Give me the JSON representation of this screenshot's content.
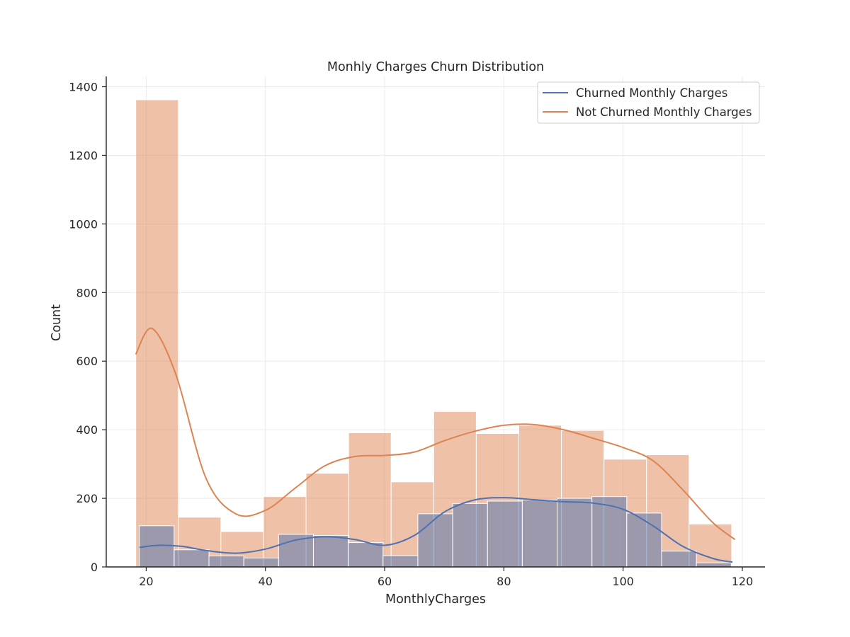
{
  "chart_data": {
    "type": "bar",
    "title": "Monhly Charges Churn Distribution",
    "xlabel": "MonthlyCharges",
    "ylabel": "Count",
    "xlim": [
      13.3,
      123.8
    ],
    "ylim": [
      0,
      1430
    ],
    "xticks": [
      20,
      40,
      60,
      80,
      100,
      120
    ],
    "yticks": [
      0,
      200,
      400,
      600,
      800,
      1000,
      1200,
      1400
    ],
    "grid": true,
    "legend_position": "top-right",
    "series": [
      {
        "name": "Not Churned Monthly Charges",
        "color": "#dd8452",
        "bin_start": 18.25,
        "bin_width": 7.14,
        "values": [
          1362,
          145,
          103,
          205,
          273,
          391,
          248,
          453,
          389,
          413,
          398,
          314,
          327,
          125
        ],
        "kde": [
          [
            18.25,
            620
          ],
          [
            21,
            695
          ],
          [
            25,
            560
          ],
          [
            30,
            260
          ],
          [
            35,
            155
          ],
          [
            40,
            165
          ],
          [
            45,
            230
          ],
          [
            50,
            295
          ],
          [
            55,
            322
          ],
          [
            60,
            325
          ],
          [
            65,
            335
          ],
          [
            70,
            368
          ],
          [
            75,
            395
          ],
          [
            80,
            413
          ],
          [
            85,
            415
          ],
          [
            90,
            400
          ],
          [
            95,
            375
          ],
          [
            100,
            348
          ],
          [
            105,
            310
          ],
          [
            110,
            225
          ],
          [
            115,
            130
          ],
          [
            118.75,
            80
          ]
        ]
      },
      {
        "name": "Churned Monthly Charges",
        "color": "#4c72b0",
        "bin_start": 18.85,
        "bin_width": 5.84,
        "values": [
          120,
          50,
          32,
          26,
          95,
          92,
          71,
          33,
          155,
          185,
          192,
          195,
          200,
          205,
          157,
          46,
          12
        ],
        "kde": [
          [
            18.85,
            57
          ],
          [
            22,
            63
          ],
          [
            26,
            60
          ],
          [
            30,
            48
          ],
          [
            35,
            40
          ],
          [
            40,
            52
          ],
          [
            45,
            78
          ],
          [
            50,
            88
          ],
          [
            55,
            80
          ],
          [
            60,
            63
          ],
          [
            65,
            92
          ],
          [
            70,
            160
          ],
          [
            75,
            195
          ],
          [
            80,
            202
          ],
          [
            85,
            196
          ],
          [
            90,
            190
          ],
          [
            95,
            186
          ],
          [
            100,
            168
          ],
          [
            105,
            120
          ],
          [
            110,
            60
          ],
          [
            115,
            25
          ],
          [
            118.35,
            14
          ]
        ]
      }
    ]
  }
}
